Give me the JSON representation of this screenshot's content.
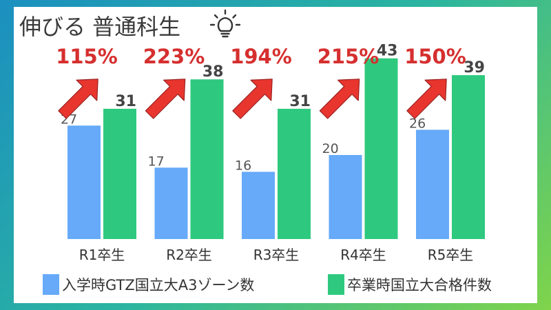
{
  "title": "伸びる 普通科生",
  "colors": {
    "series_1": "#66aaf9",
    "series_2": "#2ec97e",
    "rate": "#d62f2f",
    "arrow": "#e8362f"
  },
  "chart_data": {
    "type": "bar",
    "categories": [
      "R1卒生",
      "R2卒生",
      "R3卒生",
      "R4卒生",
      "R5卒生"
    ],
    "series": [
      {
        "name": "入学時GTZ国立大A3ゾーン数",
        "values": [
          27,
          17,
          16,
          20,
          26
        ]
      },
      {
        "name": "卒業時国立大合格件数",
        "values": [
          31,
          38,
          31,
          43,
          39
        ]
      }
    ],
    "growth_rates": [
      "115%",
      "223%",
      "194%",
      "215%",
      "150%"
    ],
    "ylim": [
      0,
      60
    ],
    "legend": "bottom"
  }
}
